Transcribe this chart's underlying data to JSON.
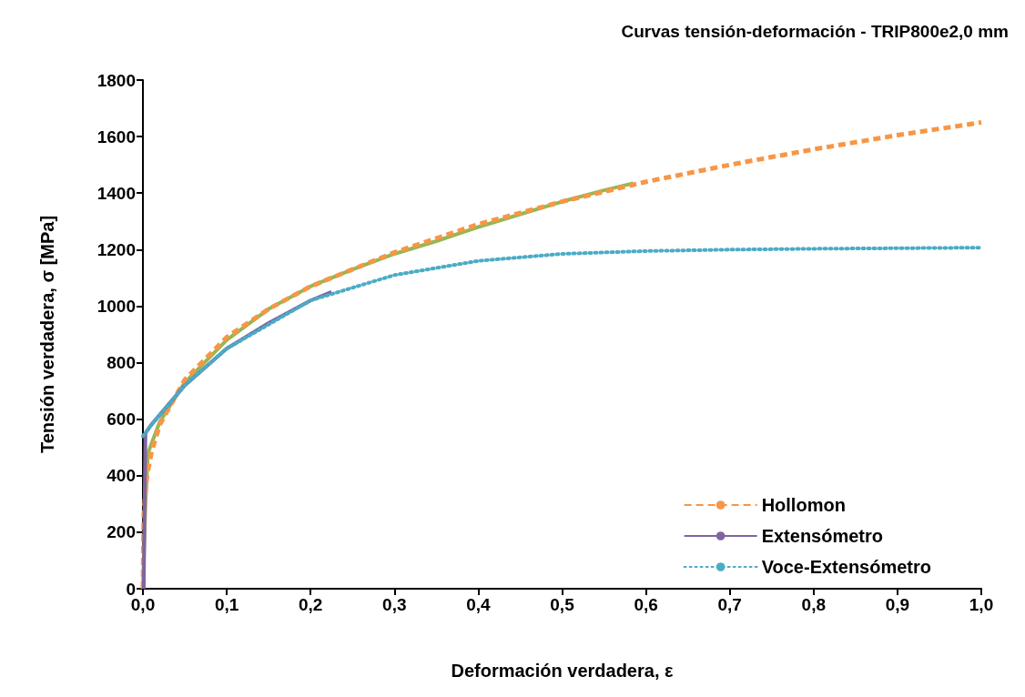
{
  "chart_data": {
    "type": "line",
    "title": "Curvas tensión-deformación - TRIP800e2,0 mm",
    "xlabel": "Deformación verdadera, ε",
    "ylabel": "Tensión verdadera, σ [MPa]",
    "xlim": [
      0,
      1
    ],
    "xticks": [
      {
        "value": 0,
        "label": "0,0"
      },
      {
        "value": 0.1,
        "label": "0,1"
      },
      {
        "value": 0.2,
        "label": "0,2"
      },
      {
        "value": 0.3,
        "label": "0,3"
      },
      {
        "value": 0.4,
        "label": "0,4"
      },
      {
        "value": 0.5,
        "label": "0,5"
      },
      {
        "value": 0.6,
        "label": "0,6"
      },
      {
        "value": 0.7,
        "label": "0,7"
      },
      {
        "value": 0.8,
        "label": "0,8"
      },
      {
        "value": 0.9,
        "label": "0,9"
      },
      {
        "value": 1,
        "label": "1,0"
      }
    ],
    "ylim": [
      0,
      1800
    ],
    "yticks": [
      0,
      200,
      400,
      600,
      800,
      1000,
      1200,
      1400,
      1600,
      1800
    ],
    "grid": false,
    "legend": "bottom right",
    "marker": "none",
    "series": [
      {
        "color": "#92b853",
        "line_style": "solid",
        "x": [
          0,
          0.003,
          0.006,
          0.02,
          0.05,
          0.1,
          0.15,
          0.2,
          0.25,
          0.3,
          0.35,
          0.4,
          0.45,
          0.5,
          0.55,
          0.585
        ],
        "values": [
          0,
          300,
          480,
          590,
          730,
          880,
          990,
          1070,
          1130,
          1185,
          1230,
          1280,
          1325,
          1370,
          1410,
          1435
        ]
      },
      {
        "name": "Hollomon",
        "color": "#f79646",
        "line_style": "dashed",
        "x": [
          0,
          0.001,
          0.003,
          0.005,
          0.01,
          0.02,
          0.05,
          0.1,
          0.15,
          0.2,
          0.3,
          0.4,
          0.5,
          0.6,
          0.7,
          0.8,
          0.9,
          1
        ],
        "values": [
          0,
          260,
          345,
          400,
          480,
          580,
          740,
          890,
          990,
          1070,
          1190,
          1290,
          1370,
          1440,
          1500,
          1555,
          1605,
          1650
        ]
      },
      {
        "name": "Extensómetro",
        "color": "#8064a2",
        "line_style": "solid",
        "x": [
          0.001,
          0.002,
          0.003,
          0.01,
          0.03,
          0.05,
          0.1,
          0.15,
          0.2,
          0.225
        ],
        "values": [
          0,
          300,
          550,
          580,
          650,
          720,
          850,
          940,
          1020,
          1050
        ]
      },
      {
        "name": "Voce-Extensómetro",
        "color": "#4bacc6",
        "line_style": "dotted",
        "x": [
          0,
          0.01,
          0.05,
          0.1,
          0.2,
          0.3,
          0.4,
          0.5,
          0.6,
          0.7,
          0.8,
          1
        ],
        "values": [
          540,
          580,
          720,
          850,
          1020,
          1110,
          1160,
          1185,
          1195,
          1200,
          1203,
          1207
        ]
      }
    ]
  }
}
